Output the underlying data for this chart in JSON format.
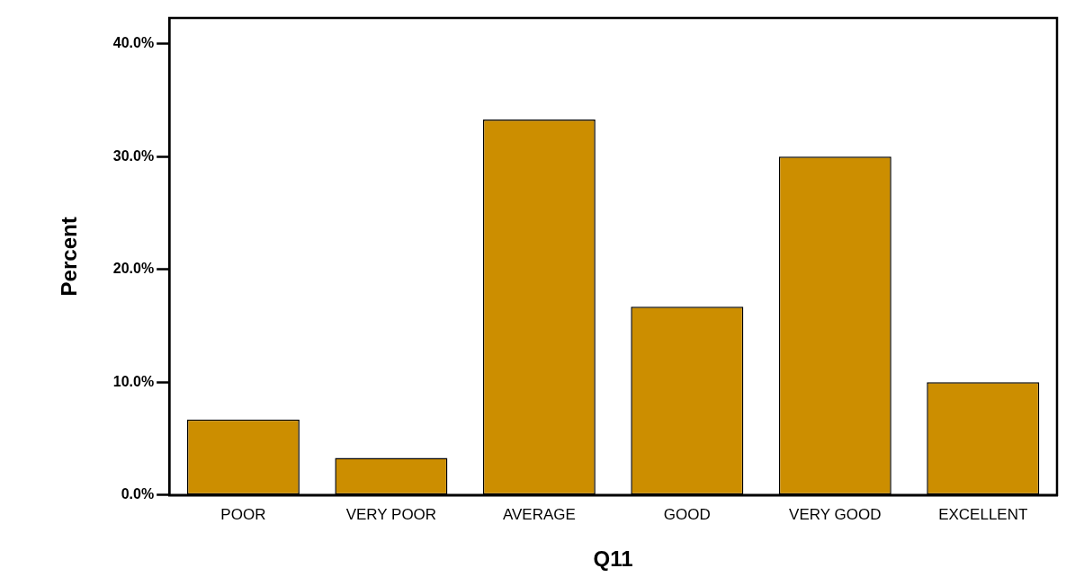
{
  "chart_data": {
    "type": "bar",
    "categories": [
      "POOR",
      "VERY POOR",
      "AVERAGE",
      "GOOD",
      "VERY GOOD",
      "EXCELLENT"
    ],
    "values": [
      6.7,
      3.3,
      33.3,
      16.7,
      30.0,
      10.0
    ],
    "color": "#cc8e00",
    "xlabel": "Q11",
    "ylabel": "Percent",
    "ylim": [
      0,
      42.3
    ],
    "yticks": [
      {
        "value": 0,
        "label": "0.0%"
      },
      {
        "value": 10,
        "label": "10.0%"
      },
      {
        "value": 20,
        "label": "20.0%"
      },
      {
        "value": 30,
        "label": "30.0%"
      },
      {
        "value": 40,
        "label": "40.0%"
      }
    ],
    "grid": false,
    "legend": false
  }
}
